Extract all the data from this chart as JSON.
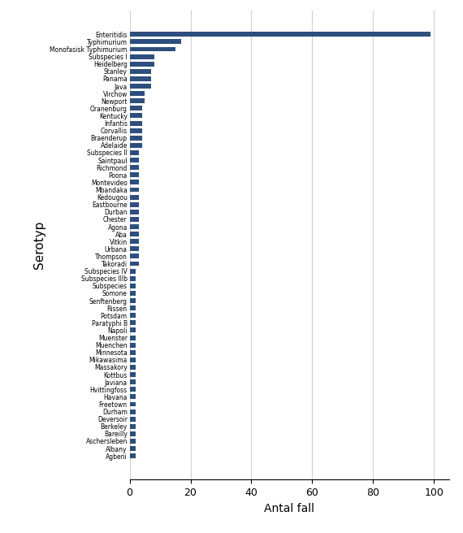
{
  "categories": [
    "Enteritidis",
    "Typhimurium",
    "Monofasisk Typhimurium",
    "Subspecies I",
    "Heidelberg",
    "Stanley",
    "Panama",
    "Java",
    "Virchow",
    "Newport",
    "Oranenburg",
    "Kentucky",
    "Infantis",
    "Corvallis",
    "Braenderup",
    "Adelaide",
    "Subspecies II",
    "Saintpaul",
    "Richmond",
    "Poona",
    "Montevideo",
    "Mbandaka",
    "Kedougou",
    "Eastbourne",
    "Durban",
    "Chester",
    "Agona",
    "Aba",
    "Vitkin",
    "Urbana",
    "Thompson",
    "Takoradi",
    "Subspecies IV",
    "Subspecies IIIb",
    "Subspecies",
    "Somone",
    "Senftenberg",
    "Rissen",
    "Potsdam",
    "Paratyphi B",
    "Napoli",
    "Muenster",
    "Muenchen",
    "Minnesota",
    "Mikawasima",
    "Massakory",
    "Kottbus",
    "Javiana",
    "Hvittingfoss",
    "Havana",
    "Freetown",
    "Durham",
    "Deversoir",
    "Berkeley",
    "Bareilly",
    "Aschersleben",
    "Albany",
    "Agbeni"
  ],
  "values": [
    99,
    17,
    15,
    8,
    8,
    7,
    7,
    7,
    5,
    5,
    4,
    4,
    4,
    4,
    4,
    4,
    3,
    3,
    3,
    3,
    3,
    3,
    3,
    3,
    3,
    3,
    3,
    3,
    3,
    3,
    3,
    3,
    2,
    2,
    2,
    2,
    2,
    2,
    2,
    2,
    2,
    2,
    2,
    2,
    2,
    2,
    2,
    2,
    2,
    2,
    2,
    2,
    2,
    2,
    2,
    2,
    2,
    2
  ],
  "bar_color": "#2e4e7e",
  "xlabel": "Antal fall",
  "ylabel": "Serotyp",
  "xlim": [
    0,
    105
  ],
  "xticks": [
    0,
    20,
    40,
    60,
    80,
    100
  ],
  "background_color": "#ffffff",
  "grid_color": "#d0d0d0",
  "label_fontsize": 5.5,
  "xlabel_fontsize": 10,
  "ylabel_fontsize": 11,
  "xtick_fontsize": 9
}
